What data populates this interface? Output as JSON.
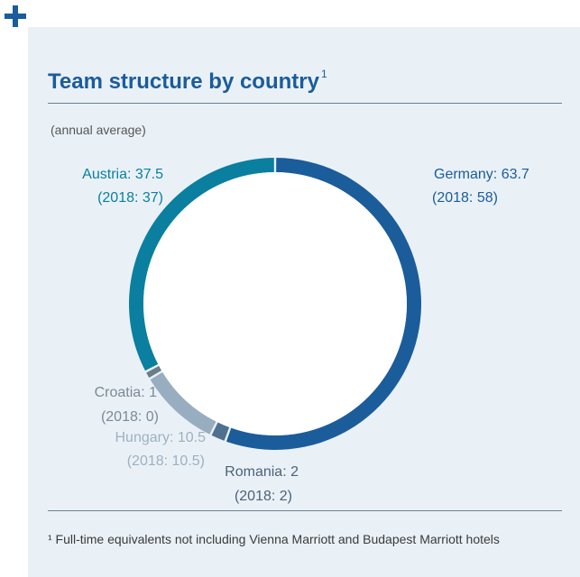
{
  "page": {
    "title": "Team structure by country",
    "title_sup": "1",
    "subtitle": "(annual average)",
    "footnote": "¹ Full-time equivalents not including Vienna Marriott and Budapest Marriott hotels"
  },
  "chart_data": {
    "type": "pie",
    "title": "Team structure by country",
    "subtitle": "(annual average)",
    "slices": [
      {
        "label": "Germany",
        "value": 63.7,
        "value_text": "Germany: 63.7",
        "prev_text": "(2018: 58)",
        "color": "#1b5c9b"
      },
      {
        "label": "Romania",
        "value": 2,
        "value_text": "Romania: 2",
        "prev_text": "(2018: 2)",
        "color": "#4f708f"
      },
      {
        "label": "Hungary",
        "value": 10.5,
        "value_text": "Hungary: 10.5",
        "prev_text": "(2018: 10.5)",
        "color": "#98adc0"
      },
      {
        "label": "Croatia",
        "value": 1,
        "value_text": "Croatia: 1",
        "prev_text": "(2018: 0)",
        "color": "#6c7c89"
      },
      {
        "label": "Austria",
        "value": 37.5,
        "value_text": "Austria: 37.5",
        "prev_text": "(2018: 37)",
        "color": "#0a7f9f"
      }
    ],
    "label_colors": {
      "Germany": "#1b5c9b",
      "Romania": "#4d6276",
      "Hungary": "#9fb0c0",
      "Croatia": "#7d8993",
      "Austria": "#0a7f9f"
    }
  }
}
